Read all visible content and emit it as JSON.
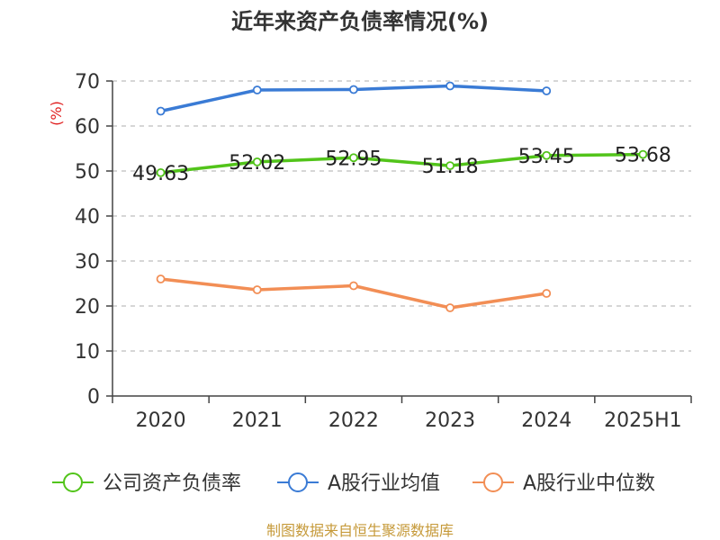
{
  "title": "近年来资产负债率情况(%)",
  "source_text": "制图数据来自恒生聚源数据库",
  "chart_data": {
    "type": "line",
    "title": "近年来资产负债率情况(%)",
    "xlabel": "",
    "ylabel": "(%)",
    "categories": [
      "2020",
      "2021",
      "2022",
      "2023",
      "2024",
      "2025H1"
    ],
    "ylim": [
      0,
      70
    ],
    "yticks": [
      0,
      10,
      20,
      30,
      40,
      50,
      60,
      70
    ],
    "grid": true,
    "legend_position": "bottom",
    "series": [
      {
        "name": "公司资产负债率",
        "color": "#52c41a",
        "values": [
          49.63,
          52.02,
          52.95,
          51.18,
          53.45,
          53.68
        ],
        "labels": [
          "49.63",
          "52.02",
          "52.95",
          "51.18",
          "53.45",
          "53.68"
        ]
      },
      {
        "name": "A股行业均值",
        "color": "#3a7bd5",
        "values": [
          63.3,
          68.0,
          68.1,
          68.9,
          67.8,
          null
        ]
      },
      {
        "name": "A股行业中位数",
        "color": "#f28e55",
        "values": [
          26.0,
          23.6,
          24.5,
          19.6,
          22.8,
          null
        ]
      }
    ]
  }
}
